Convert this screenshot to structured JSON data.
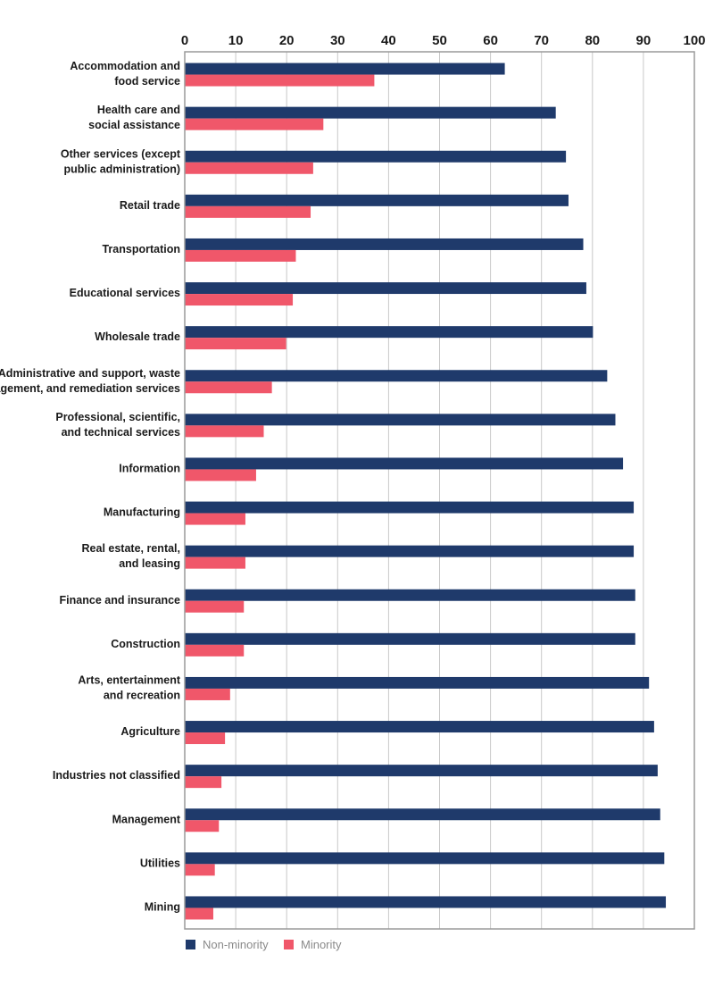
{
  "chart_data": {
    "type": "bar",
    "orientation": "horizontal",
    "categories": [
      "Accommodation and food service",
      "Health care and social assistance",
      "Other services (except public administration)",
      "Retail trade",
      "Transportation",
      "Educational services",
      "Wholesale trade",
      "Administrative and support, waste management, and remediation services",
      "Professional, scientific, and technical services",
      "Information",
      "Manufacturing",
      "Real estate, rental, and leasing",
      "Finance and insurance",
      "Construction",
      "Arts, entertainment and recreation",
      "Agriculture",
      "Industries not classified",
      "Management",
      "Utilities",
      "Mining"
    ],
    "category_label_lines": [
      [
        "Accommodation and",
        "food service"
      ],
      [
        "Health care and",
        "social assistance"
      ],
      [
        "Other services (except",
        "public administration)"
      ],
      [
        "Retail trade"
      ],
      [
        "Transportation"
      ],
      [
        "Educational services"
      ],
      [
        "Wholesale trade"
      ],
      [
        "Administrative and support, waste",
        "management, and remediation services"
      ],
      [
        "Professional, scientific,",
        "and technical services"
      ],
      [
        "Information"
      ],
      [
        "Manufacturing"
      ],
      [
        "Real estate, rental,",
        "and leasing"
      ],
      [
        "Finance and insurance"
      ],
      [
        "Construction"
      ],
      [
        "Arts, entertainment",
        "and recreation"
      ],
      [
        "Agriculture"
      ],
      [
        "Industries not classified"
      ],
      [
        "Management"
      ],
      [
        "Utilities"
      ],
      [
        "Mining"
      ]
    ],
    "series": [
      {
        "name": "Non-minority",
        "color": "#1f3a6b",
        "values": [
          62.8,
          72.8,
          74.8,
          75.3,
          78.2,
          78.8,
          80.1,
          82.9,
          84.5,
          86.0,
          88.1,
          88.1,
          88.4,
          88.4,
          91.1,
          92.1,
          92.8,
          93.3,
          94.1,
          94.4
        ]
      },
      {
        "name": "Minority",
        "color": "#f0576a",
        "values": [
          37.2,
          27.2,
          25.2,
          24.7,
          21.8,
          21.2,
          19.9,
          17.1,
          15.5,
          14.0,
          11.9,
          11.9,
          11.6,
          11.6,
          8.9,
          7.9,
          7.2,
          6.7,
          5.9,
          5.6
        ]
      }
    ],
    "xlim": [
      0,
      100
    ],
    "xticks": [
      "0",
      "10",
      "20",
      "30",
      "40",
      "50",
      "60",
      "70",
      "80",
      "90",
      "100"
    ],
    "x_axis_position": "top",
    "grid": true,
    "legend_position": "bottom-left"
  }
}
